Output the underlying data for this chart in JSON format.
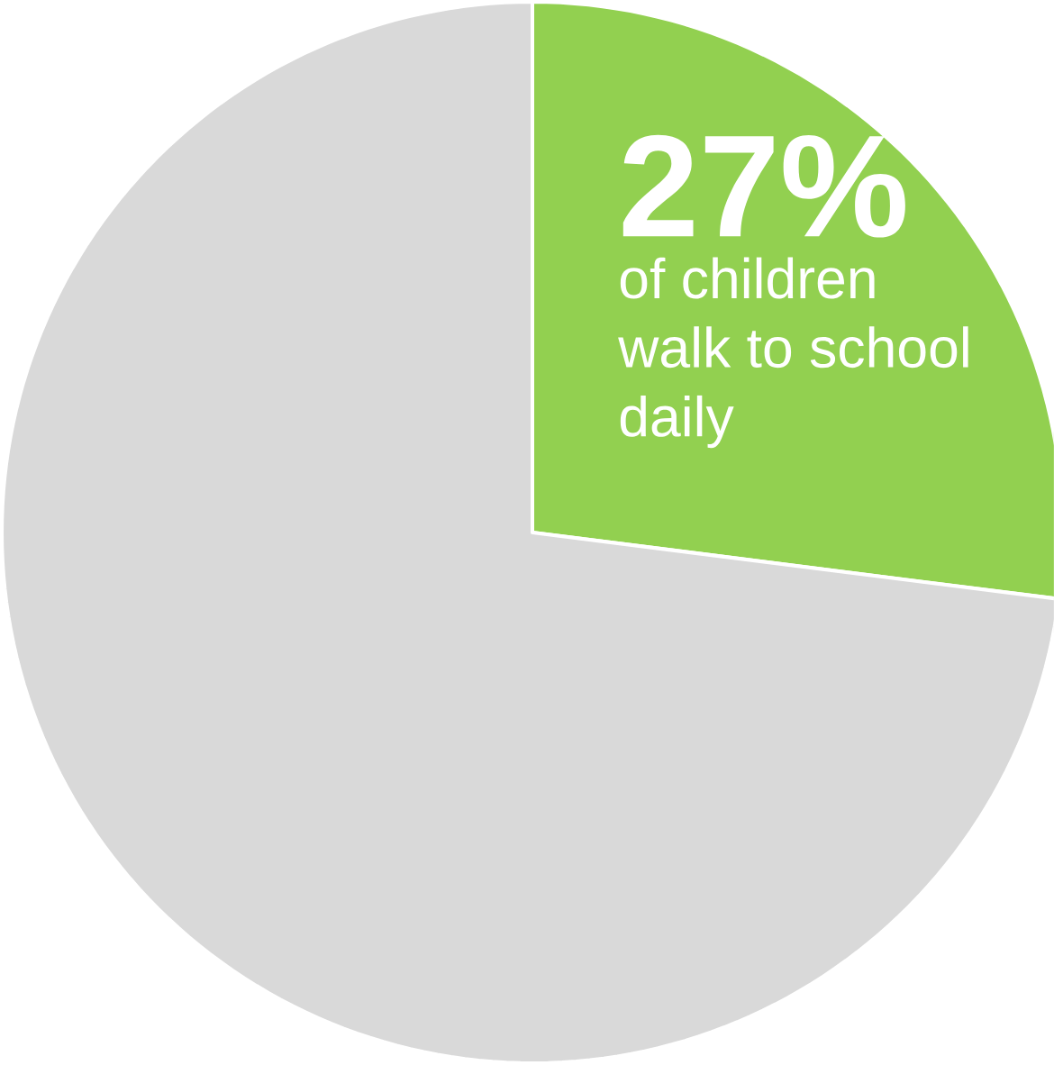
{
  "chart_data": {
    "type": "pie",
    "categories": [
      "of children walk to school daily",
      null
    ],
    "values": [
      27,
      73
    ],
    "colors": [
      "#92d050",
      "#d9d9d9"
    ],
    "value_labels": [
      "27%",
      null
    ]
  }
}
